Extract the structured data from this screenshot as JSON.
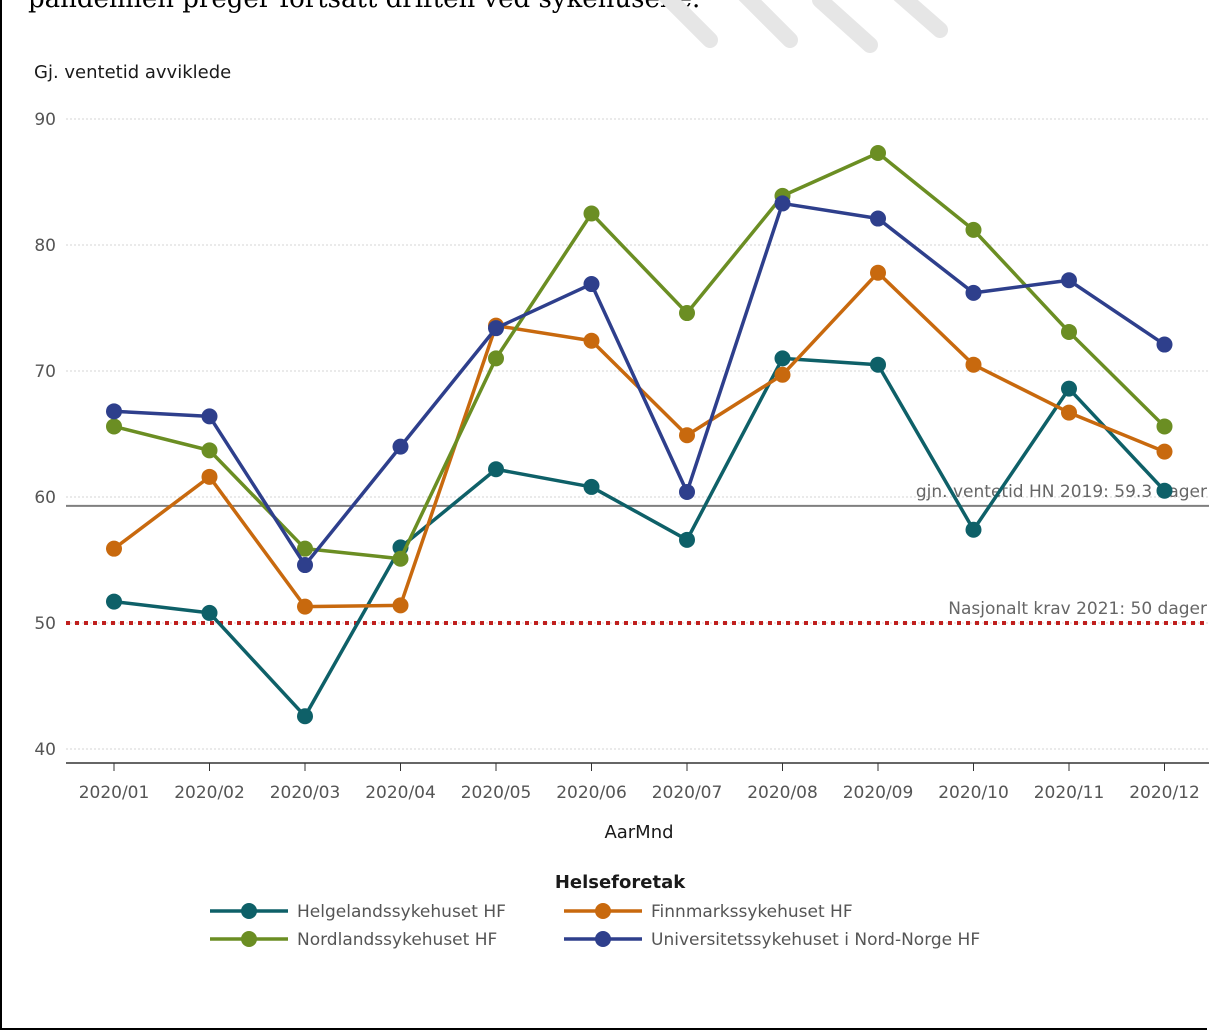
{
  "intro_text": "pandemien preger fortsatt driften ved sykehusene.",
  "chart_data": {
    "type": "line",
    "title": "",
    "ylabel": "Gj. ventetid avviklede",
    "xlabel": "AarMnd",
    "ylim": [
      38,
      91
    ],
    "yticks": [
      40,
      50,
      60,
      70,
      80,
      90
    ],
    "grid": true,
    "categories": [
      "2020/01",
      "2020/02",
      "2020/03",
      "2020/04",
      "2020/05",
      "2020/06",
      "2020/07",
      "2020/08",
      "2020/09",
      "2020/10",
      "2020/11",
      "2020/12"
    ],
    "series": [
      {
        "name": "Helgelandssykehuset HF",
        "color": "#0e6068",
        "values": [
          51.7,
          50.8,
          42.6,
          56.0,
          62.2,
          60.8,
          56.6,
          71.0,
          70.5,
          57.4,
          68.6,
          60.5
        ]
      },
      {
        "name": "Finnmarkssykehuset HF",
        "color": "#c8690e",
        "values": [
          55.9,
          61.6,
          51.3,
          51.4,
          73.6,
          72.4,
          64.9,
          69.7,
          77.8,
          70.5,
          66.7,
          63.6
        ]
      },
      {
        "name": "Nordlandssykehuset HF",
        "color": "#6b8e23",
        "values": [
          65.6,
          63.7,
          55.9,
          55.1,
          71.0,
          82.5,
          74.6,
          83.9,
          87.3,
          81.2,
          73.1,
          65.6
        ]
      },
      {
        "name": "Universitetssykehuset i Nord-Norge HF",
        "color": "#2e3f8c",
        "values": [
          66.8,
          66.4,
          54.6,
          64.0,
          73.4,
          76.9,
          60.4,
          83.3,
          82.1,
          76.2,
          77.2,
          72.1
        ]
      }
    ],
    "reference_lines": [
      {
        "label": "gjn. ventetid  HN 2019: 59.3 dager",
        "value": 59.3,
        "color": "#7f7f7f",
        "style": "solid"
      },
      {
        "label": "Nasjonalt krav 2021: 50 dager",
        "value": 50,
        "color": "#c0201e",
        "style": "dotted"
      }
    ],
    "legend": {
      "title": "Helseforetak",
      "position": "bottom"
    }
  }
}
